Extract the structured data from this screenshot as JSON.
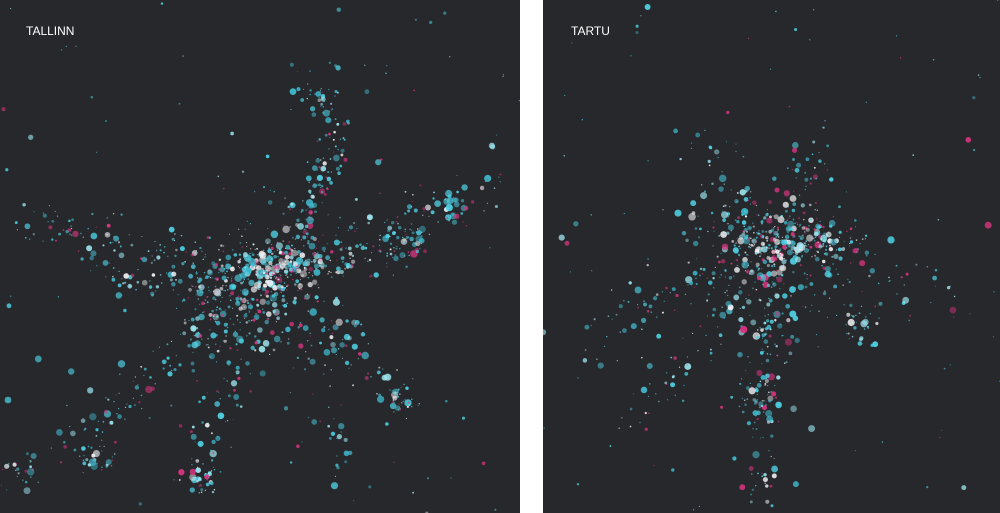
{
  "panels": [
    {
      "title": "TALLINN"
    },
    {
      "title": "TARTU"
    }
  ]
}
